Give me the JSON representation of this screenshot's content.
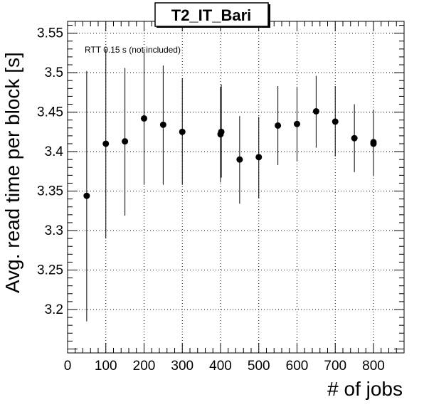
{
  "chart_data": {
    "type": "scatter",
    "title": "T2_IT_Bari",
    "xlabel": "# of jobs",
    "ylabel": "Avg. read time per block [s]",
    "annotation": "RTT 0.15 s (not included)",
    "xlim": [
      0,
      880
    ],
    "ylim": [
      3.145,
      3.565
    ],
    "xticks": [
      0,
      100,
      200,
      300,
      400,
      500,
      600,
      700,
      800
    ],
    "xtick_labels": [
      "0",
      "100",
      "200",
      "300",
      "400",
      "500",
      "600",
      "700",
      "800"
    ],
    "yticks": [
      3.2,
      3.25,
      3.3,
      3.35,
      3.4,
      3.45,
      3.5,
      3.55
    ],
    "ytick_labels": [
      "3.2",
      "3.25",
      "3.3",
      "3.35",
      "3.4",
      "3.45",
      "3.5",
      "3.55"
    ],
    "grid": true,
    "points": [
      {
        "x": 50,
        "y": 3.344,
        "ylow": 3.185,
        "yhigh": 3.502
      },
      {
        "x": 100,
        "y": 3.41,
        "ylow": 3.29,
        "yhigh": 3.53
      },
      {
        "x": 150,
        "y": 3.413,
        "ylow": 3.319,
        "yhigh": 3.506
      },
      {
        "x": 200,
        "y": 3.442,
        "ylow": 3.358,
        "yhigh": 3.53
      },
      {
        "x": 250,
        "y": 3.434,
        "ylow": 3.358,
        "yhigh": 3.509
      },
      {
        "x": 300,
        "y": 3.425,
        "ylow": 3.358,
        "yhigh": 3.493
      },
      {
        "x": 400,
        "y": 3.422,
        "ylow": 3.361,
        "yhigh": 3.482
      },
      {
        "x": 402,
        "y": 3.425,
        "ylow": 3.367,
        "yhigh": 3.485
      },
      {
        "x": 450,
        "y": 3.39,
        "ylow": 3.334,
        "yhigh": 3.445
      },
      {
        "x": 500,
        "y": 3.393,
        "ylow": 3.341,
        "yhigh": 3.444
      },
      {
        "x": 550,
        "y": 3.433,
        "ylow": 3.383,
        "yhigh": 3.483
      },
      {
        "x": 600,
        "y": 3.435,
        "ylow": 3.388,
        "yhigh": 3.482
      },
      {
        "x": 650,
        "y": 3.451,
        "ylow": 3.405,
        "yhigh": 3.496
      },
      {
        "x": 700,
        "y": 3.438,
        "ylow": 3.394,
        "yhigh": 3.483
      },
      {
        "x": 750,
        "y": 3.417,
        "ylow": 3.374,
        "yhigh": 3.46
      },
      {
        "x": 800,
        "y": 3.41,
        "ylow": 3.369,
        "yhigh": 3.453
      },
      {
        "x": 800,
        "y": 3.412,
        "ylow": 3.372,
        "yhigh": 3.451
      }
    ]
  }
}
